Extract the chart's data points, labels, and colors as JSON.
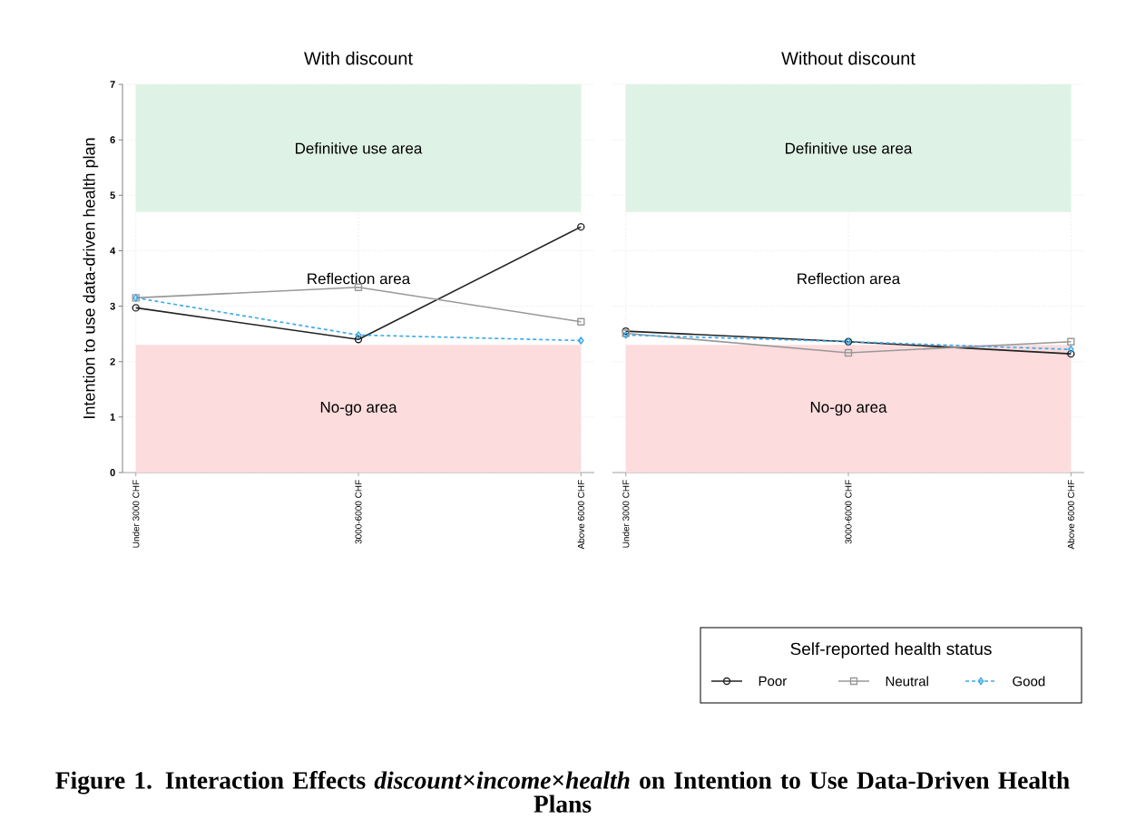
{
  "chart_data": [
    {
      "type": "line",
      "title": "With discount",
      "ylabel": "Intention to use data-driven health plan",
      "categories": [
        "Under 3000 CHF",
        "3000-6000 CHF",
        "Above 6000 CHF"
      ],
      "series": [
        {
          "color": "#222222",
          "marker": "circle",
          "line_style": "solid",
          "values": [
            2.97,
            2.4,
            4.43
          ]
        },
        {
          "color": "#999999",
          "marker": "square",
          "line_style": "solid",
          "values": [
            3.15,
            3.34,
            2.72
          ]
        },
        {
          "color": "#3aa8e6",
          "marker": "diamond",
          "line_style": "dashed",
          "values": [
            3.15,
            2.48,
            2.38
          ]
        }
      ],
      "ylim": [
        0,
        7
      ],
      "yticks": [
        0,
        1,
        2,
        3,
        4,
        5,
        6,
        7
      ],
      "grid": true,
      "bands": [
        {
          "axis": "y",
          "from": 4.7,
          "to": 7,
          "label": "Definitive use area",
          "color": "#dff2e6"
        },
        {
          "axis": "y",
          "from": 0,
          "to": 2.3,
          "label": "No-go area",
          "color": "#fcdcdd"
        }
      ],
      "annotations": [
        "Reflection area",
        "Figure 1. Interaction Effects *discount*×*income*×*health* on Intention to Use Data-Driven Health Plans"
      ]
    },
    {
      "type": "line",
      "title": "Without discount",
      "legend_title": "Self-reported health status",
      "legend": "bottom right",
      "categories": [
        "Under 3000 CHF",
        "3000-6000 CHF",
        "Above 6000 CHF"
      ],
      "series": [
        {
          "name": "Poor",
          "color": "#222222",
          "marker": "circle",
          "line_style": "solid",
          "values": [
            2.55,
            2.36,
            2.14
          ]
        },
        {
          "name": "Neutral",
          "color": "#999999",
          "marker": "square",
          "line_style": "solid",
          "values": [
            2.51,
            2.16,
            2.36
          ]
        },
        {
          "name": "Good",
          "color": "#3aa8e6",
          "marker": "diamond",
          "line_style": "dashed",
          "values": [
            2.48,
            2.36,
            2.22
          ]
        }
      ],
      "ylim": [
        0,
        7
      ],
      "yticks": [
        0,
        1,
        2,
        3,
        4,
        5,
        6,
        7
      ],
      "grid": true,
      "tick_labels": "x",
      "bands": [
        {
          "axis": "y",
          "from": 4.7,
          "to": 7,
          "label": "Definitive use area",
          "color": "#dff2e6"
        },
        {
          "axis": "y",
          "from": 0,
          "to": 2.3,
          "label": "No-go area",
          "color": "#fcdcdd"
        }
      ],
      "annotations": [
        "Reflection area"
      ]
    }
  ]
}
